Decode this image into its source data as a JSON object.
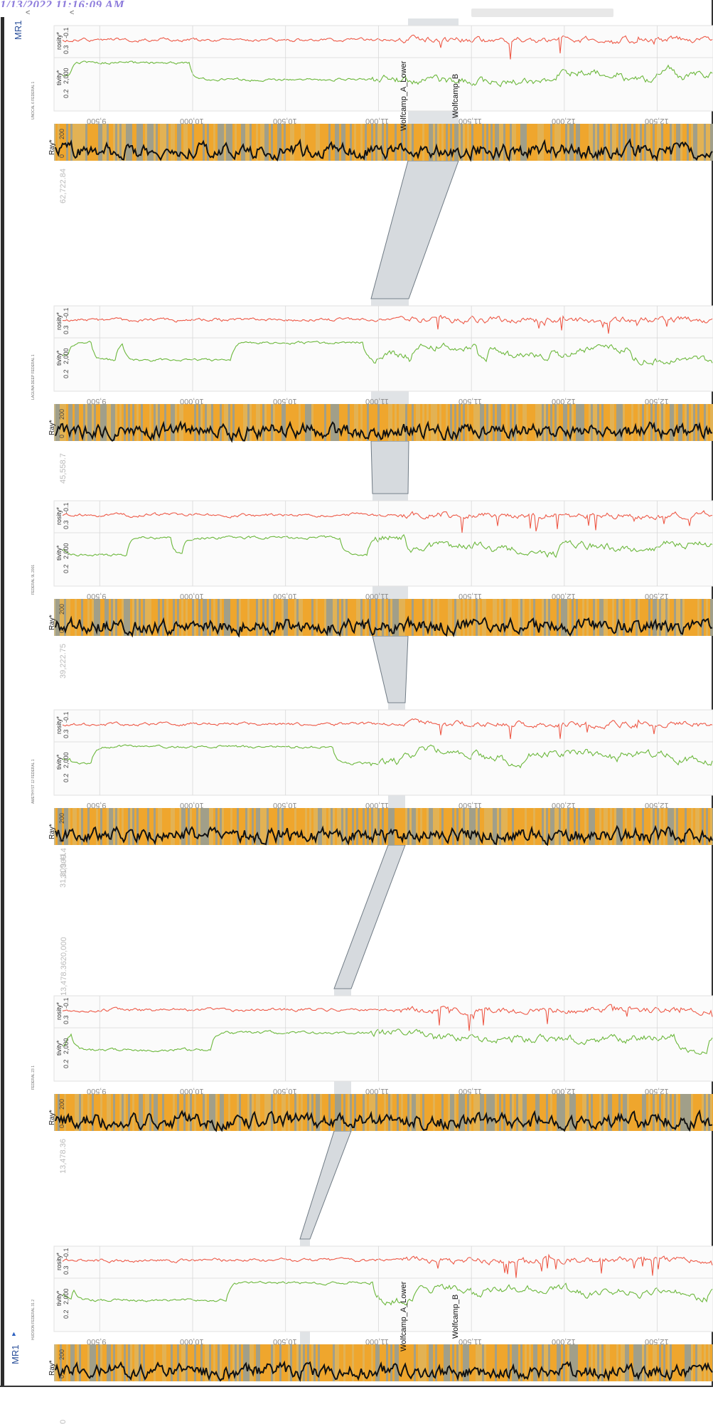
{
  "window": {
    "timestamp": "1/13/2022 11:16:09 AM",
    "side_label": "MR1",
    "side_label_bottom": "MR1",
    "nav_left": "<",
    "nav_right": "<"
  },
  "colors": {
    "porosity": "#ee5a48",
    "resistivity": "#6cb83c",
    "gamma_ray": "#111111",
    "correlation_band": "#a5aeb6",
    "gr_high": "#f6a21c",
    "gr_low": "#9a9a88"
  },
  "tracks": {
    "porosity_label": "rosity*",
    "resistivity_label": "tivity*",
    "gamma_ray_label": "Ray*",
    "porosity_scale": [
      "0.3",
      "-0.1"
    ],
    "resistivity_scale": [
      "0.2",
      "2,000"
    ],
    "gamma_ray_scale": [
      "0",
      "200"
    ],
    "depth_ticks": [
      "9,500",
      "10,000",
      "10,500",
      "11,000",
      "11,500",
      "12,000",
      "12,500"
    ]
  },
  "wells": [
    {
      "name": "UNOCAL 6 FEDERAL 1",
      "distance": "62,722.84",
      "top_a": "Wolfcamp_A_Lower",
      "top_b": "Wolfcamp_B"
    },
    {
      "name": "LAGUNA DEEP FEDERAL 1",
      "distance": "45,558.7",
      "top_a": "",
      "top_b": ""
    },
    {
      "name": "FEDERAL 9L 2001",
      "distance": "39,222.75",
      "top_a": "",
      "top_b": ""
    },
    {
      "name": "AMETHYST 12 FEDERAL 1",
      "distance": "31,309.41",
      "top_a": "",
      "top_b": ""
    },
    {
      "name": "FEDERAL 23 1",
      "distance": "13,478.36",
      "top_a": "",
      "top_b": ""
    },
    {
      "name": "HUDSON FEDERAL 31 2",
      "distance": "0",
      "top_a": "Wolfcamp_A_Lower",
      "top_b": "Wolfcamp_B"
    }
  ],
  "section_distances": [
    "31,309.4",
    "13,478.3620,000"
  ]
}
